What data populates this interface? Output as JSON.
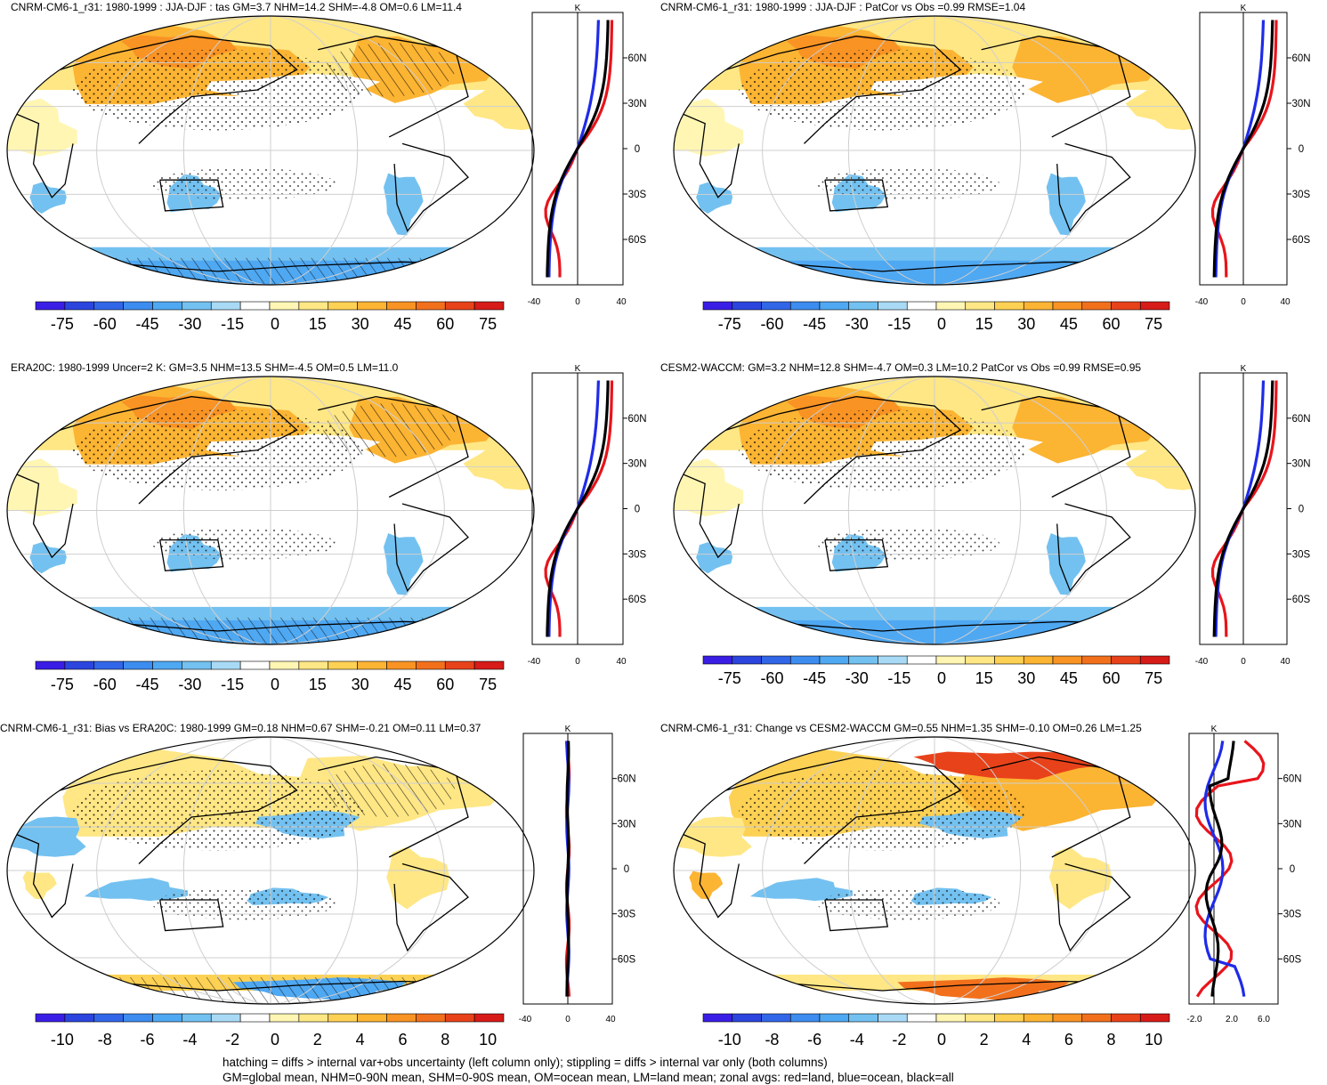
{
  "footer": {
    "line1": "hatching = diffs > internal var+obs uncertainty (left column only); stippling = diffs > internal var only (both columns)",
    "line2": "GM=global mean, NHM=0-90N mean, SHM=0-90S mean, OM=ocean mean, LM=land mean; zonal avgs: red=land, blue=ocean, black=all"
  },
  "colors": {
    "palette": [
      "#3a1ee6",
      "#2c45de",
      "#3266e8",
      "#3d8cf0",
      "#4fa8f2",
      "#73c1f0",
      "#a8daf6",
      "#ffffff",
      "#fff6b4",
      "#ffe785",
      "#fdd154",
      "#fcb433",
      "#f89324",
      "#f2701c",
      "#e8421a",
      "#d71b18"
    ],
    "land_line": "#e8141b",
    "ocean_line": "#1f2be8",
    "all_line": "#000000"
  },
  "chart_data": [
    {
      "type": "map",
      "id": "p1",
      "title": "CNRM-CM6-1_r31: 1980-1999 : JJA-DJF : tas GM=3.7 NHM=14.2 SHM=-4.8 OM=0.6 LM=11.4",
      "colorbar_labels": [
        "-75",
        "-60",
        "-45",
        "-30",
        "-15",
        "0",
        "15",
        "30",
        "45",
        "60",
        "75"
      ],
      "zonal_avg": {
        "unit": "K",
        "xticks": [
          "-40",
          "0",
          "40"
        ],
        "yticks": [
          "60N",
          "30N",
          "0",
          "30S",
          "60S"
        ]
      },
      "hatching": true
    },
    {
      "type": "map",
      "id": "p2",
      "title": "CNRM-CM6-1_r31: 1980-1999 : JJA-DJF : PatCor vs Obs =0.99 RMSE=1.04",
      "colorbar_labels": [
        "-75",
        "-60",
        "-45",
        "-30",
        "-15",
        "0",
        "15",
        "30",
        "45",
        "60",
        "75"
      ],
      "zonal_avg": {
        "unit": "K",
        "xticks": [
          "-40",
          "0",
          "40"
        ],
        "yticks": [
          "60N",
          "30N",
          "0",
          "30S",
          "60S"
        ]
      },
      "hatching": false
    },
    {
      "type": "map",
      "id": "p3",
      "title": "ERA20C: 1980-1999 Uncer=2 K: GM=3.5 NHM=13.5 SHM=-4.5 OM=0.5 LM=11.0",
      "colorbar_labels": [
        "-75",
        "-60",
        "-45",
        "-30",
        "-15",
        "0",
        "15",
        "30",
        "45",
        "60",
        "75"
      ],
      "zonal_avg": {
        "unit": "K",
        "xticks": [
          "-40",
          "0",
          "40"
        ],
        "yticks": [
          "60N",
          "30N",
          "0",
          "30S",
          "60S"
        ]
      },
      "hatching": true
    },
    {
      "type": "map",
      "id": "p4",
      "title": "CESM2-WACCM: GM=3.2 NHM=12.8 SHM=-4.7 OM=0.3 LM=10.2 PatCor vs Obs =0.99 RMSE=0.95",
      "colorbar_labels": [
        "-75",
        "-60",
        "-45",
        "-30",
        "-15",
        "0",
        "15",
        "30",
        "45",
        "60",
        "75"
      ],
      "zonal_avg": {
        "unit": "K",
        "xticks": [
          "-40",
          "0",
          "40"
        ],
        "yticks": [
          "60N",
          "30N",
          "0",
          "30S",
          "60S"
        ]
      },
      "hatching": false
    },
    {
      "type": "map",
      "id": "p5",
      "title": "CNRM-CM6-1_r31: Bias vs ERA20C: 1980-1999 GM=0.18 NHM=0.67 SHM=-0.21 OM=0.11 LM=0.37",
      "colorbar_labels": [
        "-10",
        "-8",
        "-6",
        "-4",
        "-2",
        "0",
        "2",
        "4",
        "6",
        "8",
        "10"
      ],
      "zonal_avg": {
        "unit": "K",
        "xticks": [
          "-40",
          "0",
          "40"
        ],
        "yticks": [
          "60N",
          "30N",
          "0",
          "30S",
          "60S"
        ]
      },
      "hatching": true
    },
    {
      "type": "map",
      "id": "p6",
      "title": "CNRM-CM6-1_r31: Change vs CESM2-WACCM GM=0.55 NHM=1.35 SHM=-0.10 OM=0.26 LM=1.25",
      "colorbar_labels": [
        "-10",
        "-8",
        "-6",
        "-4",
        "-2",
        "0",
        "2",
        "4",
        "6",
        "8",
        "10"
      ],
      "zonal_avg": {
        "unit": "K",
        "xticks": [
          "-2.0",
          "2.0",
          "6.0"
        ],
        "yticks": [
          "60N",
          "30N",
          "0",
          "30S",
          "60S"
        ]
      },
      "hatching": false
    }
  ]
}
